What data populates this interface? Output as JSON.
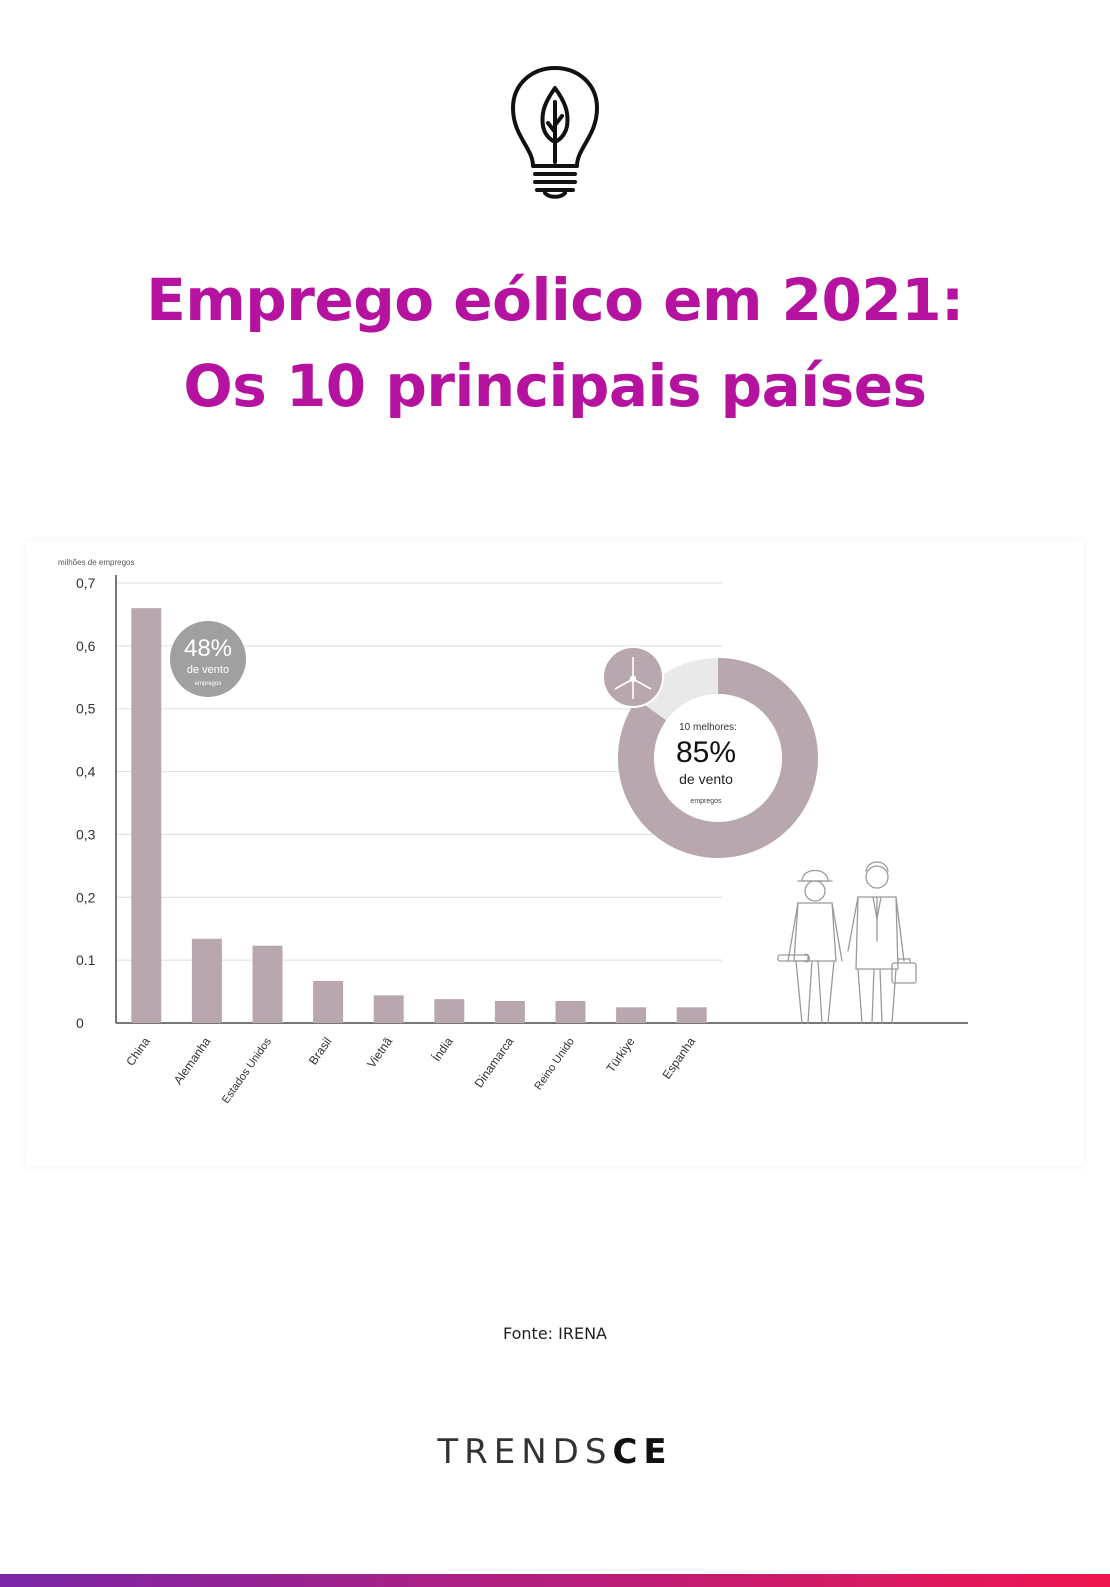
{
  "page": {
    "title_line1": "Emprego eólico em 2021:",
    "title_line2": "Os 10 principais países",
    "source": "Fonte: IRENA",
    "brand_light": "TRENDS",
    "brand_bold": "CE",
    "icons": [
      "lightbulb-leaf-icon",
      "wind-turbine-icon",
      "workers-icon"
    ],
    "colors": {
      "title": "#b5139f",
      "bar": "#b8a7ae",
      "callout": "#a0a0a0",
      "donut_dark": "#b8a7ae",
      "donut_light": "#e9e9e9",
      "axis": "#4a4a4a",
      "grid": "#dddddd",
      "gradient_start": "#7a27a8",
      "gradient_end": "#f0154f"
    }
  },
  "chart_data": {
    "type": "bar",
    "ylabel": "milhões de empregos",
    "ylim": [
      0,
      0.7
    ],
    "y_ticks": [
      "0",
      "0.1",
      "0,2",
      "0,3",
      "0,4",
      "0,5",
      "0,6",
      "0,7"
    ],
    "categories": [
      "China",
      "Alemanha",
      "Estados Unidos",
      "Brasil",
      "Vietnã",
      "Índia",
      "Dinamarca",
      "Reino Unido",
      "Türkiye",
      "Espanha"
    ],
    "values": [
      0.66,
      0.134,
      0.123,
      0.067,
      0.044,
      0.038,
      0.035,
      0.035,
      0.025,
      0.025
    ],
    "grid": true,
    "callout": {
      "value": "48",
      "unit": "%",
      "line1": "de vento",
      "line2": "empregos"
    },
    "donut": {
      "share": 0.85,
      "label_top": "10 melhores:",
      "value": "85",
      "unit": "%",
      "line1": "de vento",
      "line2": "empregos"
    }
  }
}
